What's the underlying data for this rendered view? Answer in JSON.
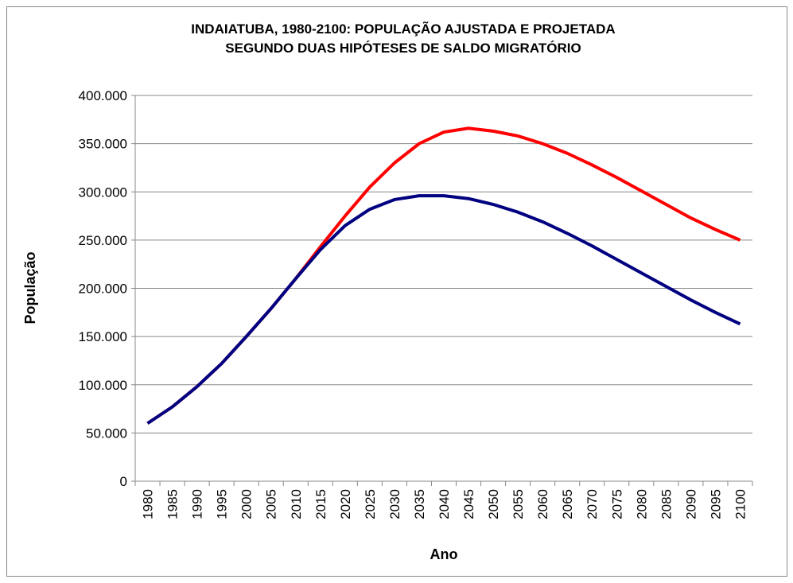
{
  "chart_data": {
    "type": "line",
    "title": [
      "INDAIATUBA, 1980-2100: POPULAÇÃO AJUSTADA E PROJETADA",
      "SEGUNDO DUAS HIPÓTESES DE SALDO MIGRATÓRIO"
    ],
    "x_label": "Ano",
    "y_label": "População",
    "categories": [
      "1980",
      "1985",
      "1990",
      "1995",
      "2000",
      "2005",
      "2010",
      "2015",
      "2020",
      "2025",
      "2030",
      "2035",
      "2040",
      "2045",
      "2050",
      "2055",
      "2060",
      "2065",
      "2070",
      "2075",
      "2080",
      "2085",
      "2090",
      "2095",
      "2100"
    ],
    "series": [
      {
        "color": "#ff0000",
        "values": [
          60000,
          77000,
          98000,
          122000,
          150000,
          179000,
          210000,
          243000,
          275000,
          305000,
          330000,
          350000,
          362000,
          366000,
          363000,
          358000,
          350000,
          340000,
          328000,
          315000,
          301000,
          287000,
          273000,
          261000,
          250000
        ]
      },
      {
        "color": "#000080",
        "values": [
          60000,
          77000,
          98000,
          122000,
          150000,
          179000,
          210000,
          240000,
          265000,
          282000,
          292000,
          296000,
          296000,
          293000,
          287000,
          279000,
          269000,
          257000,
          244000,
          230000,
          216000,
          202000,
          188000,
          175000,
          163000
        ]
      }
    ],
    "ylim": [
      0,
      400000
    ],
    "yticks": [
      0,
      {
        "value": 50000,
        "label": "50.000"
      },
      {
        "value": 100000,
        "label": "100.000"
      },
      {
        "value": 150000,
        "label": "150.000"
      },
      {
        "value": 200000,
        "label": "200.000"
      },
      {
        "value": 250000,
        "label": "250.000"
      },
      {
        "value": 300000,
        "label": "300.000"
      },
      {
        "value": 350000,
        "label": "350.000"
      },
      {
        "value": 400000,
        "label": "400.000"
      }
    ],
    "grid": true
  }
}
